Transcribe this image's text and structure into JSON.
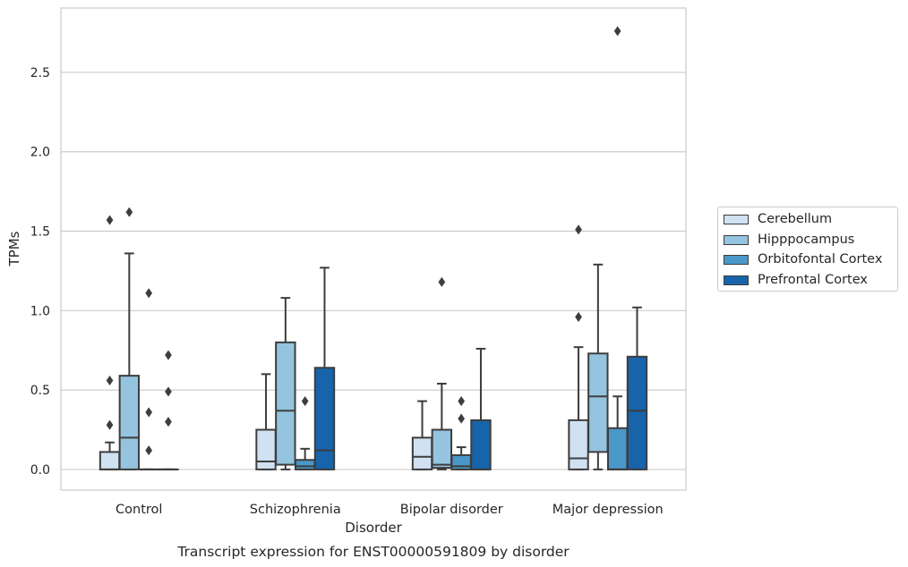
{
  "chart_data": {
    "type": "box",
    "title": "",
    "caption": "Transcript expression for ENST00000591809 by disorder",
    "xlabel": "Disorder",
    "ylabel": "TPMs",
    "ylim": [
      -0.13,
      2.905
    ],
    "yticks": [
      0.0,
      0.5,
      1.0,
      1.5,
      2.0,
      2.5
    ],
    "ytick_labels": [
      "0.0",
      "0.5",
      "1.0",
      "1.5",
      "2.0",
      "2.5"
    ],
    "grid": "horizontal",
    "legend_position": "right",
    "categories": [
      "Control",
      "Schizophrenia",
      "Bipolar disorder",
      "Major depression"
    ],
    "series": [
      {
        "name": "Cerebellum",
        "color": "#d0e1f2",
        "boxes": [
          {
            "q1": 0.0,
            "median": 0.0,
            "q3": 0.11,
            "whisker_low": 0.0,
            "whisker_high": 0.17,
            "outliers": [
              0.28,
              0.56,
              1.57
            ]
          },
          {
            "q1": 0.0,
            "median": 0.05,
            "q3": 0.25,
            "whisker_low": 0.0,
            "whisker_high": 0.6,
            "outliers": []
          },
          {
            "q1": 0.0,
            "median": 0.08,
            "q3": 0.2,
            "whisker_low": 0.0,
            "whisker_high": 0.43,
            "outliers": []
          },
          {
            "q1": 0.0,
            "median": 0.07,
            "q3": 0.31,
            "whisker_low": 0.0,
            "whisker_high": 0.77,
            "outliers": [
              0.96,
              1.51
            ]
          }
        ]
      },
      {
        "name": "Hipppocampus",
        "color": "#94c4df",
        "boxes": [
          {
            "q1": 0.0,
            "median": 0.2,
            "q3": 0.59,
            "whisker_low": 0.0,
            "whisker_high": 1.36,
            "outliers": [
              1.62
            ]
          },
          {
            "q1": 0.03,
            "median": 0.37,
            "q3": 0.8,
            "whisker_low": 0.0,
            "whisker_high": 1.08,
            "outliers": []
          },
          {
            "q1": 0.01,
            "median": 0.03,
            "q3": 0.25,
            "whisker_low": 0.0,
            "whisker_high": 0.54,
            "outliers": [
              1.18
            ]
          },
          {
            "q1": 0.11,
            "median": 0.46,
            "q3": 0.73,
            "whisker_low": 0.0,
            "whisker_high": 1.29,
            "outliers": []
          }
        ]
      },
      {
        "name": "Orbitofontal Cortex",
        "color": "#4a98c9",
        "boxes": [
          {
            "q1": 0.0,
            "median": 0.0,
            "q3": 0.0,
            "whisker_low": 0.0,
            "whisker_high": 0.0,
            "outliers": [
              0.12,
              0.36,
              1.11
            ]
          },
          {
            "q1": 0.0,
            "median": 0.02,
            "q3": 0.06,
            "whisker_low": 0.0,
            "whisker_high": 0.13,
            "outliers": [
              0.43
            ]
          },
          {
            "q1": 0.0,
            "median": 0.02,
            "q3": 0.09,
            "whisker_low": 0.0,
            "whisker_high": 0.14,
            "outliers": [
              0.32,
              0.43
            ]
          },
          {
            "q1": 0.0,
            "median": 0.0,
            "q3": 0.26,
            "whisker_low": 0.0,
            "whisker_high": 0.46,
            "outliers": [
              2.76
            ]
          }
        ]
      },
      {
        "name": "Prefrontal Cortex",
        "color": "#1764ab",
        "boxes": [
          {
            "q1": 0.0,
            "median": 0.0,
            "q3": 0.0,
            "whisker_low": 0.0,
            "whisker_high": 0.0,
            "outliers": [
              0.3,
              0.49,
              0.72
            ]
          },
          {
            "q1": 0.0,
            "median": 0.12,
            "q3": 0.64,
            "whisker_low": 0.0,
            "whisker_high": 1.27,
            "outliers": []
          },
          {
            "q1": 0.0,
            "median": 0.0,
            "q3": 0.31,
            "whisker_low": 0.0,
            "whisker_high": 0.76,
            "outliers": []
          },
          {
            "q1": 0.0,
            "median": 0.37,
            "q3": 0.71,
            "whisker_low": 0.0,
            "whisker_high": 1.02,
            "outliers": []
          }
        ]
      }
    ]
  }
}
